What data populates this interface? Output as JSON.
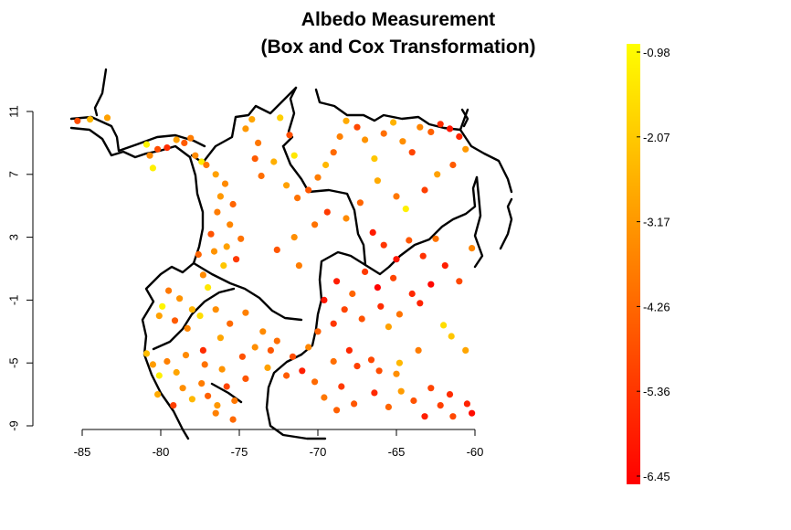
{
  "chart_data": {
    "type": "scatter",
    "title": [
      "Albedo Measurement",
      "(Box and Cox Transformation)"
    ],
    "xlabel": "",
    "ylabel": "",
    "xlim": [
      -85.5,
      -59.5
    ],
    "ylim": [
      -9,
      11
    ],
    "x_ticks": [
      -85,
      -80,
      -75,
      -70,
      -65,
      -60
    ],
    "y_ticks": [
      11,
      7,
      3,
      -1,
      -5,
      -9
    ],
    "x_tick_labels": [
      "-85",
      "-80",
      "-75",
      "-70",
      "-65",
      "-60"
    ],
    "y_tick_labels": [
      "11",
      "7",
      "3",
      "-1",
      "-5",
      "-9"
    ],
    "grid": false,
    "colorbar": {
      "min": -6.45,
      "max": -0.98,
      "labels": [
        "-0.98",
        "-2.07",
        "-3.17",
        "-4.26",
        "-5.36",
        "-6.45"
      ],
      "low_color": "#ff0000",
      "mid_color": "#ff8000",
      "high_color": "#ffff00"
    },
    "points": [
      [
        -85.3,
        10.4,
        -4.8
      ],
      [
        -84.5,
        10.5,
        -2.5
      ],
      [
        -83.4,
        10.6,
        -3.0
      ],
      [
        -80.9,
        8.9,
        -1.2
      ],
      [
        -80.5,
        7.4,
        -1.3
      ],
      [
        -80.7,
        8.2,
        -3.5
      ],
      [
        -80.2,
        8.6,
        -4.8
      ],
      [
        -79.6,
        8.7,
        -5.5
      ],
      [
        -79.0,
        9.2,
        -3.0
      ],
      [
        -78.5,
        9.0,
        -4.5
      ],
      [
        -78.1,
        9.3,
        -3.8
      ],
      [
        -77.8,
        8.2,
        -3.5
      ],
      [
        -77.4,
        7.8,
        -1.4
      ],
      [
        -77.1,
        7.6,
        -3.9
      ],
      [
        -76.5,
        7.0,
        -3.0
      ],
      [
        -75.9,
        6.4,
        -3.5
      ],
      [
        -76.2,
        5.6,
        -3.2
      ],
      [
        -75.4,
        5.1,
        -4.3
      ],
      [
        -76.4,
        4.6,
        -3.8
      ],
      [
        -75.6,
        3.8,
        -3.6
      ],
      [
        -76.8,
        3.2,
        -4.7
      ],
      [
        -75.8,
        2.4,
        -3.0
      ],
      [
        -74.9,
        2.9,
        -4.0
      ],
      [
        -75.2,
        1.6,
        -5.2
      ],
      [
        -76.6,
        2.1,
        -3.3
      ],
      [
        -76.0,
        1.2,
        -2.2
      ],
      [
        -77.6,
        1.9,
        -4.3
      ],
      [
        -77.3,
        0.6,
        -3.5
      ],
      [
        -77.0,
        -0.2,
        -1.5
      ],
      [
        -74.6,
        9.9,
        -3.2
      ],
      [
        -74.2,
        10.5,
        -2.9
      ],
      [
        -73.8,
        9.0,
        -3.9
      ],
      [
        -74.0,
        8.0,
        -4.5
      ],
      [
        -73.6,
        6.9,
        -4.1
      ],
      [
        -72.8,
        7.8,
        -2.7
      ],
      [
        -72.4,
        10.6,
        -2.0
      ],
      [
        -71.8,
        9.5,
        -4.8
      ],
      [
        -71.5,
        8.2,
        -1.5
      ],
      [
        -72.0,
        6.3,
        -3.0
      ],
      [
        -71.3,
        5.5,
        -4.0
      ],
      [
        -70.6,
        6.0,
        -4.6
      ],
      [
        -70.0,
        6.8,
        -3.8
      ],
      [
        -69.5,
        7.6,
        -2.5
      ],
      [
        -69.0,
        8.4,
        -4.2
      ],
      [
        -68.6,
        9.4,
        -3.7
      ],
      [
        -68.2,
        10.4,
        -2.8
      ],
      [
        -67.5,
        10.0,
        -4.9
      ],
      [
        -67.0,
        9.2,
        -3.3
      ],
      [
        -66.4,
        8.0,
        -2.2
      ],
      [
        -65.8,
        9.6,
        -4.1
      ],
      [
        -65.2,
        10.3,
        -2.6
      ],
      [
        -64.6,
        9.1,
        -3.4
      ],
      [
        -64.0,
        8.4,
        -5.0
      ],
      [
        -63.5,
        10.0,
        -3.6
      ],
      [
        -62.8,
        9.7,
        -4.4
      ],
      [
        -62.2,
        10.2,
        -5.5
      ],
      [
        -61.6,
        9.9,
        -6.0
      ],
      [
        -61.0,
        9.4,
        -5.6
      ],
      [
        -60.6,
        8.6,
        -3.2
      ],
      [
        -61.4,
        7.6,
        -4.5
      ],
      [
        -62.4,
        7.0,
        -3.0
      ],
      [
        -63.2,
        6.0,
        -5.1
      ],
      [
        -64.4,
        4.8,
        -1.3
      ],
      [
        -65.0,
        5.6,
        -3.9
      ],
      [
        -66.2,
        6.6,
        -2.8
      ],
      [
        -67.3,
        5.2,
        -4.3
      ],
      [
        -68.2,
        4.2,
        -3.5
      ],
      [
        -69.4,
        4.6,
        -5.2
      ],
      [
        -70.2,
        3.8,
        -4.0
      ],
      [
        -71.5,
        3.0,
        -3.4
      ],
      [
        -72.6,
        2.2,
        -4.6
      ],
      [
        -71.2,
        1.2,
        -3.8
      ],
      [
        -66.5,
        3.3,
        -5.9
      ],
      [
        -65.8,
        2.5,
        -5.3
      ],
      [
        -65.0,
        1.6,
        -6.0
      ],
      [
        -64.2,
        2.8,
        -4.6
      ],
      [
        -63.3,
        1.8,
        -5.4
      ],
      [
        -62.5,
        2.9,
        -4.0
      ],
      [
        -61.9,
        1.2,
        -5.8
      ],
      [
        -61.0,
        0.2,
        -4.9
      ],
      [
        -60.2,
        2.3,
        -3.6
      ],
      [
        -62.8,
        0.0,
        -6.3
      ],
      [
        -64.0,
        -0.6,
        -5.6
      ],
      [
        -65.2,
        0.4,
        -5.0
      ],
      [
        -66.2,
        -0.2,
        -6.4
      ],
      [
        -67.0,
        0.8,
        -5.2
      ],
      [
        -67.8,
        -0.6,
        -4.3
      ],
      [
        -68.8,
        0.2,
        -5.8
      ],
      [
        -68.3,
        -1.6,
        -5.0
      ],
      [
        -67.2,
        -2.2,
        -4.7
      ],
      [
        -66.0,
        -1.4,
        -5.5
      ],
      [
        -64.8,
        -1.9,
        -4.0
      ],
      [
        -63.5,
        -1.2,
        -5.7
      ],
      [
        -69.6,
        -1.0,
        -6.0
      ],
      [
        -69.0,
        -2.5,
        -5.3
      ],
      [
        -70.0,
        -3.0,
        -4.4
      ],
      [
        -65.5,
        -2.7,
        -3.0
      ],
      [
        -62.0,
        -2.6,
        -1.7
      ],
      [
        -61.5,
        -3.3,
        -2.2
      ],
      [
        -60.6,
        -4.2,
        -2.9
      ],
      [
        -63.6,
        -4.2,
        -3.8
      ],
      [
        -64.8,
        -5.0,
        -2.5
      ],
      [
        -66.6,
        -4.8,
        -4.9
      ],
      [
        -68.0,
        -4.2,
        -5.6
      ],
      [
        -69.0,
        -4.9,
        -4.1
      ],
      [
        -70.6,
        -4.0,
        -3.6
      ],
      [
        -71.6,
        -4.6,
        -4.8
      ],
      [
        -72.6,
        -3.6,
        -4.1
      ],
      [
        -73.5,
        -3.0,
        -3.5
      ],
      [
        -73.0,
        -4.2,
        -4.6
      ],
      [
        -73.2,
        -5.3,
        -3.0
      ],
      [
        -72.0,
        -5.8,
        -4.5
      ],
      [
        -71.0,
        -5.5,
        -5.8
      ],
      [
        -70.2,
        -6.2,
        -4.2
      ],
      [
        -69.6,
        -7.2,
        -3.9
      ],
      [
        -68.5,
        -6.5,
        -5.2
      ],
      [
        -67.7,
        -7.6,
        -4.6
      ],
      [
        -66.4,
        -6.9,
        -5.6
      ],
      [
        -65.5,
        -7.8,
        -4.3
      ],
      [
        -64.7,
        -6.8,
        -3.1
      ],
      [
        -63.9,
        -7.4,
        -4.7
      ],
      [
        -63.2,
        -8.4,
        -5.8
      ],
      [
        -62.2,
        -7.7,
        -5.1
      ],
      [
        -61.4,
        -8.4,
        -4.9
      ],
      [
        -60.5,
        -7.6,
        -5.7
      ],
      [
        -60.2,
        -8.2,
        -6.2
      ],
      [
        -62.8,
        -6.6,
        -5.0
      ],
      [
        -61.6,
        -7.0,
        -5.5
      ],
      [
        -65.0,
        -5.7,
        -3.4
      ],
      [
        -66.1,
        -5.5,
        -4.8
      ],
      [
        -67.5,
        -5.2,
        -5.1
      ],
      [
        -68.8,
        -8.0,
        -4.4
      ],
      [
        -74.6,
        -1.8,
        -3.7
      ],
      [
        -75.6,
        -2.5,
        -4.2
      ],
      [
        -76.5,
        -1.6,
        -3.4
      ],
      [
        -77.5,
        -2.0,
        -1.7
      ],
      [
        -78.3,
        -2.8,
        -3.6
      ],
      [
        -79.1,
        -2.3,
        -4.5
      ],
      [
        -79.9,
        -1.4,
        -1.2
      ],
      [
        -80.1,
        -2.0,
        -3.0
      ],
      [
        -79.5,
        -0.4,
        -3.9
      ],
      [
        -78.8,
        -0.9,
        -3.3
      ],
      [
        -78.0,
        -1.6,
        -2.6
      ],
      [
        -80.9,
        -4.4,
        -2.4
      ],
      [
        -80.5,
        -5.1,
        -3.1
      ],
      [
        -80.1,
        -5.8,
        -1.3
      ],
      [
        -79.6,
        -4.9,
        -3.7
      ],
      [
        -79.0,
        -5.6,
        -2.9
      ],
      [
        -78.6,
        -6.6,
        -3.4
      ],
      [
        -78.0,
        -7.3,
        -2.5
      ],
      [
        -77.4,
        -6.3,
        -3.8
      ],
      [
        -77.0,
        -7.1,
        -4.4
      ],
      [
        -76.4,
        -7.7,
        -3.2
      ],
      [
        -75.8,
        -6.5,
        -5.0
      ],
      [
        -75.3,
        -7.4,
        -3.9
      ],
      [
        -74.6,
        -6.0,
        -4.6
      ],
      [
        -76.1,
        -5.4,
        -3.3
      ],
      [
        -77.2,
        -5.1,
        -4.0
      ],
      [
        -78.4,
        -4.5,
        -3.5
      ],
      [
        -79.2,
        -7.7,
        -5.1
      ],
      [
        -80.2,
        -7.0,
        -2.8
      ],
      [
        -76.5,
        -8.2,
        -3.7
      ],
      [
        -75.4,
        -8.6,
        -4.2
      ],
      [
        -74.0,
        -4.0,
        -3.4
      ],
      [
        -74.8,
        -4.6,
        -4.7
      ],
      [
        -76.2,
        -3.4,
        -2.9
      ],
      [
        -77.3,
        -4.2,
        -5.5
      ]
    ]
  }
}
